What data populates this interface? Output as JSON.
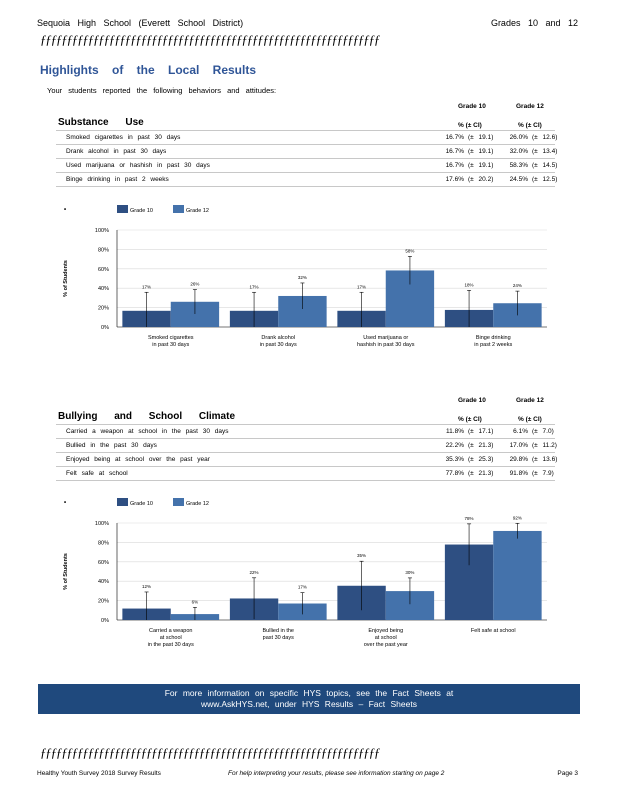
{
  "header": {
    "school": "Sequoia High School (Everett School District)",
    "grades": "Grades 10 and 12"
  },
  "rule": "ƒƒƒƒƒƒƒƒƒƒƒƒƒƒƒƒƒƒƒƒƒƒƒƒƒƒƒƒƒƒƒƒƒƒƒƒƒƒƒƒƒƒƒƒƒƒƒƒƒƒƒƒƒƒƒƒƒƒƒƒƒƒƒƒ",
  "page_title": "Highlights of the Local Results",
  "subtitle": "Your students reported the following behaviors and attitudes:",
  "col_headers": {
    "grade10": "Grade 10",
    "grade12": "Grade 12",
    "ci": "% (± CI)"
  },
  "substance": {
    "title": "Substance Use",
    "rows": [
      {
        "label": "Smoked cigarettes in past 30 days",
        "g10": "16.7%",
        "g10ci": "(± 19.1)",
        "g12": "26.0%",
        "g12ci": "(± 12.6)"
      },
      {
        "label": "Drank alcohol in past 30 days",
        "g10": "16.7%",
        "g10ci": "(± 19.1)",
        "g12": "32.0%",
        "g12ci": "(± 13.4)"
      },
      {
        "label": "Used marijuana or hashish in past 30 days",
        "g10": "16.7%",
        "g10ci": "(± 19.1)",
        "g12": "58.3%",
        "g12ci": "(± 14.5)"
      },
      {
        "label": "Binge drinking in past 2 weeks",
        "g10": "17.6%",
        "g10ci": "(± 20.2)",
        "g12": "24.5%",
        "g12ci": "(± 12.5)"
      }
    ]
  },
  "bullying": {
    "title": "Bullying and School Climate",
    "rows": [
      {
        "label": "Carried a weapon at school in the past 30 days",
        "g10": "11.8%",
        "g10ci": "(± 17.1)",
        "g12": "6.1%",
        "g12ci": "(± 7.0)"
      },
      {
        "label": "Bullied in the past 30 days",
        "g10": "22.2%",
        "g10ci": "(± 21.3)",
        "g12": "17.0%",
        "g12ci": "(± 11.2)"
      },
      {
        "label": "Enjoyed being at school over the past year",
        "g10": "35.3%",
        "g10ci": "(± 25.3)",
        "g12": "29.8%",
        "g12ci": "(± 13.6)"
      },
      {
        "label": "Felt safe at school",
        "g10": "77.8%",
        "g10ci": "(± 21.3)",
        "g12": "91.8%",
        "g12ci": "(± 7.9)"
      }
    ]
  },
  "chart_data": [
    {
      "type": "bar",
      "ylabel": "% of Students",
      "yticks": [
        "0%",
        "20%",
        "40%",
        "60%",
        "80%",
        "100%"
      ],
      "ylim": [
        0,
        100
      ],
      "legend_placement": "top-left",
      "categories": [
        [
          "Smoked cigarettes",
          "in past 30 days"
        ],
        [
          "Drank alcohol",
          "in past 30 days"
        ],
        [
          "Used marijuana or",
          "hashish in past 30 days"
        ],
        [
          "Binge drinking",
          "in past 2 weeks"
        ]
      ],
      "series": [
        {
          "name": "Grade 10",
          "color": "#2E4F82",
          "values": [
            16.7,
            16.7,
            16.7,
            17.6
          ],
          "ci": [
            19.1,
            19.1,
            19.1,
            20.2
          ],
          "labels": [
            "17%",
            "17%",
            "17%",
            "18%"
          ]
        },
        {
          "name": "Grade 12",
          "color": "#4472AB",
          "values": [
            26.0,
            32.0,
            58.3,
            24.5
          ],
          "ci": [
            12.6,
            13.4,
            14.5,
            12.5
          ],
          "labels": [
            "26%",
            "32%",
            "58%",
            "24%"
          ]
        }
      ]
    },
    {
      "type": "bar",
      "ylabel": "% of Students",
      "yticks": [
        "0%",
        "20%",
        "40%",
        "60%",
        "80%",
        "100%"
      ],
      "ylim": [
        0,
        100
      ],
      "legend_placement": "top-left",
      "categories": [
        [
          "Carried a weapon",
          "at school",
          "in the past 30 days"
        ],
        [
          "Bullied in the",
          "past 30 days"
        ],
        [
          "Enjoyed being",
          "at school",
          "over the past year"
        ],
        [
          "Felt safe at school"
        ]
      ],
      "series": [
        {
          "name": "Grade 10",
          "color": "#2E4F82",
          "values": [
            11.8,
            22.2,
            35.3,
            77.8
          ],
          "ci": [
            17.1,
            21.3,
            25.3,
            21.3
          ],
          "labels": [
            "12%",
            "22%",
            "35%",
            "78%"
          ]
        },
        {
          "name": "Grade 12",
          "color": "#4472AB",
          "values": [
            6.1,
            17.0,
            29.8,
            91.8
          ],
          "ci": [
            7.0,
            11.2,
            13.6,
            7.9
          ],
          "labels": [
            "6%",
            "17%",
            "30%",
            "92%"
          ]
        }
      ]
    }
  ],
  "banner": {
    "line1": "For more information on specific HYS topics, see the Fact Sheets at",
    "line2": "www.AskHYS.net, under HYS Results – Fact Sheets"
  },
  "footer": {
    "left": "Healthy Youth Survey 2018 Survey Results",
    "middle": "For help interpreting your results, please see information starting on page 2",
    "right": "Page 3"
  }
}
